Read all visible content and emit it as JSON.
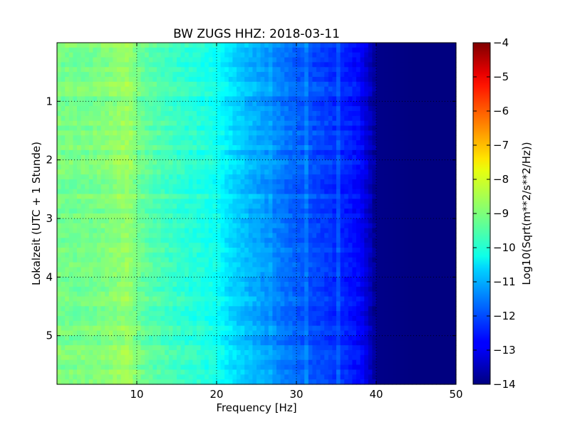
{
  "chart_data": {
    "type": "heatmap",
    "title": "BW ZUGS HHZ: 2018-03-11",
    "xlabel": "Frequency [Hz]",
    "ylabel": "Lokalzeit (UTC + 1 Stunde)",
    "colorbar_label": "Log10(Sqrt(m**2/s**2/Hz))",
    "colormap": "jet",
    "xlim": [
      0,
      50
    ],
    "ylim": [
      5.83,
      0
    ],
    "x_ticks": [
      10,
      20,
      30,
      40,
      50
    ],
    "y_ticks": [
      1,
      2,
      3,
      4,
      5
    ],
    "clim": [
      -14,
      -4
    ],
    "colorbar_ticks": [
      -14,
      -13,
      -12,
      -11,
      -10,
      -9,
      -8,
      -7,
      -6,
      -5,
      -4
    ],
    "grid": true,
    "z_profile_over_frequency": {
      "frequency_hz": [
        0,
        2,
        5,
        8,
        9,
        10,
        12,
        15,
        18,
        20,
        22,
        24,
        26,
        28,
        30,
        32,
        34,
        36,
        38,
        39,
        40,
        45,
        50
      ],
      "log10_psd": [
        -9.0,
        -9.1,
        -9.05,
        -8.8,
        -8.7,
        -9.1,
        -9.4,
        -9.7,
        -9.9,
        -10.1,
        -10.6,
        -10.9,
        -11.2,
        -11.5,
        -11.8,
        -12.0,
        -12.2,
        -12.4,
        -12.7,
        -13.2,
        -13.9,
        -14,
        -14
      ]
    }
  }
}
